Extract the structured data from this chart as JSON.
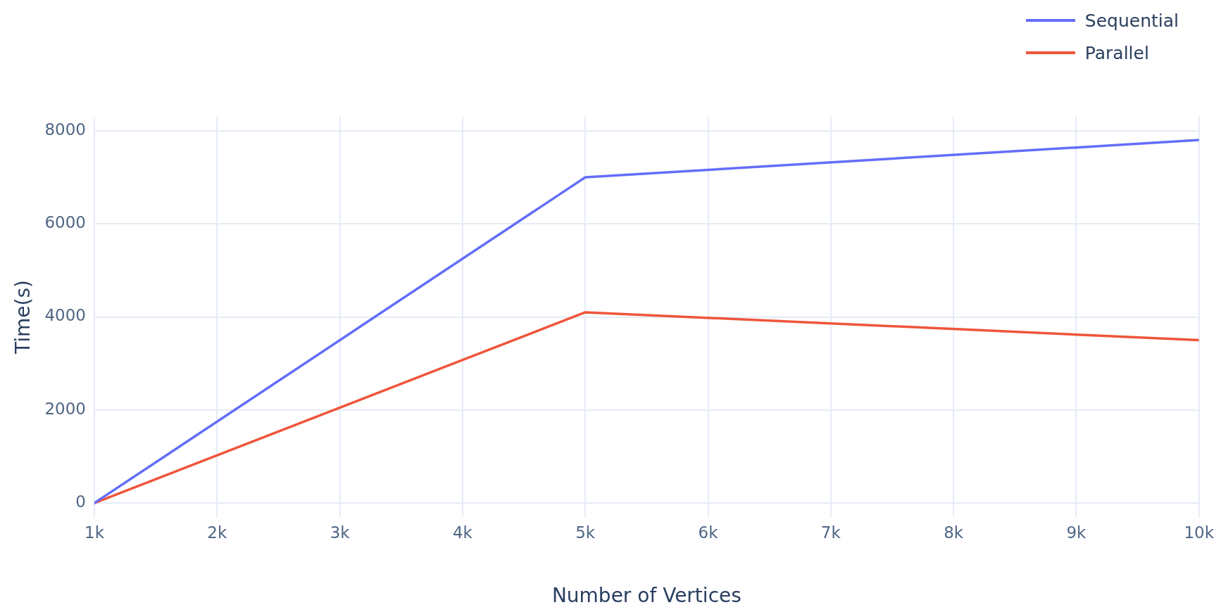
{
  "chart_data": {
    "type": "line",
    "xlabel": "Number of Vertices",
    "ylabel": "Time(s)",
    "x": [
      1000,
      5000,
      10000
    ],
    "series": [
      {
        "name": "Sequential",
        "color": "#636efa",
        "values": [
          0,
          7000,
          7800
        ]
      },
      {
        "name": "Parallel",
        "color": "#ef553b",
        "values": [
          0,
          4100,
          3500
        ]
      }
    ],
    "xlim": [
      1000,
      10000
    ],
    "xticks": [
      {
        "value": 1000,
        "label": "1k"
      },
      {
        "value": 2000,
        "label": "2k"
      },
      {
        "value": 3000,
        "label": "3k"
      },
      {
        "value": 4000,
        "label": "4k"
      },
      {
        "value": 5000,
        "label": "5k"
      },
      {
        "value": 6000,
        "label": "6k"
      },
      {
        "value": 7000,
        "label": "7k"
      },
      {
        "value": 8000,
        "label": "8k"
      },
      {
        "value": 9000,
        "label": "9k"
      },
      {
        "value": 10000,
        "label": "10k"
      }
    ],
    "ylim": [
      -300,
      8300
    ],
    "yticks": [
      0,
      2000,
      4000,
      6000,
      8000
    ],
    "grid": true,
    "legend": "top right",
    "marker": "none",
    "line_style": "solid"
  }
}
